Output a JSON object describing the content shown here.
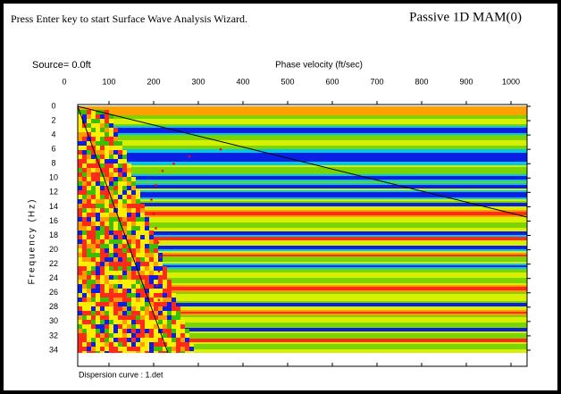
{
  "header": {
    "instruction": "Press Enter key to start Surface Wave Analysis Wizard.",
    "mode": "Passive 1D MAM(0)"
  },
  "chart_data": {
    "type": "heatmap",
    "source_label": "Source=  0.0ft",
    "x_label": "Phase velocity (ft/sec)",
    "y_label": "Frequency (Hz)",
    "xlim": [
      30,
      1036
    ],
    "xticks": [
      0,
      100,
      200,
      300,
      400,
      500,
      600,
      700,
      800,
      900,
      1000
    ],
    "ylim": [
      0,
      35
    ],
    "yticks": [
      0,
      2,
      4,
      6,
      8,
      10,
      12,
      14,
      16,
      18,
      20,
      22,
      24,
      26,
      28,
      30,
      32,
      34
    ],
    "points": {
      "color": "#ff0000",
      "x": [
        350,
        280,
        245,
        220,
        205,
        195,
        200,
        205,
        210,
        215,
        212,
        208,
        212,
        218
      ],
      "y": [
        6,
        7,
        8,
        9,
        11,
        13,
        15,
        17,
        19,
        21,
        23,
        25,
        27,
        29
      ]
    },
    "footer": "Dispersion curve : 1.det"
  }
}
